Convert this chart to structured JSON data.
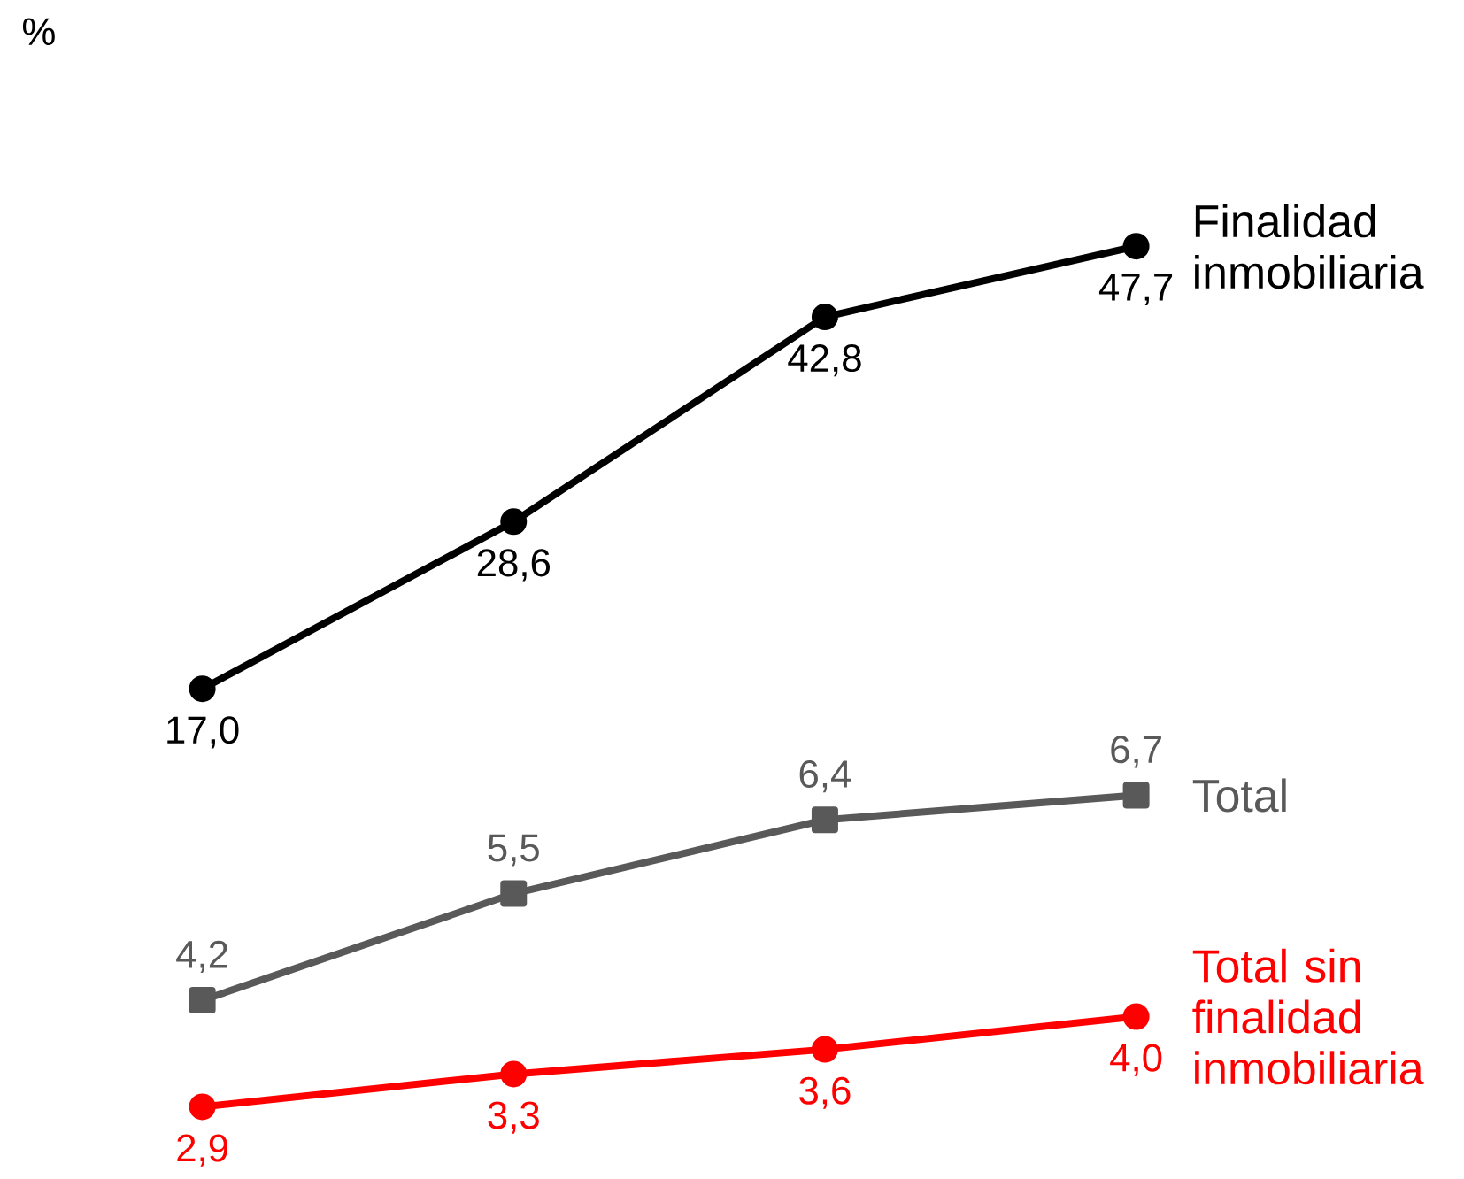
{
  "chart_data": [
    {
      "type": "line",
      "categories": [
        null,
        null,
        null,
        null
      ],
      "annotations": [
        "%"
      ],
      "series": [
        {
          "name": "Finalidad inmobiliaria",
          "color": "#000000",
          "marker": "circle",
          "values": [
            17.0,
            28.6,
            42.8,
            47.7
          ],
          "value_labels": [
            "17,0",
            "28,6",
            "42,8",
            "47,7"
          ]
        }
      ]
    },
    {
      "type": "line",
      "categories": [
        null,
        null,
        null,
        null
      ],
      "series": [
        {
          "name": "Total",
          "color": "#595959",
          "marker": "square",
          "values": [
            4.2,
            5.5,
            6.4,
            6.7
          ],
          "value_labels": [
            "4,2",
            "5,5",
            "6,4",
            "6,7"
          ]
        },
        {
          "name": "Total sin finalidad inmobiliaria",
          "color": "#ff0000",
          "marker": "circle",
          "values": [
            2.9,
            3.3,
            3.6,
            4.0
          ],
          "value_labels": [
            "2,9",
            "3,3",
            "3,6",
            "4,0"
          ]
        }
      ]
    }
  ]
}
